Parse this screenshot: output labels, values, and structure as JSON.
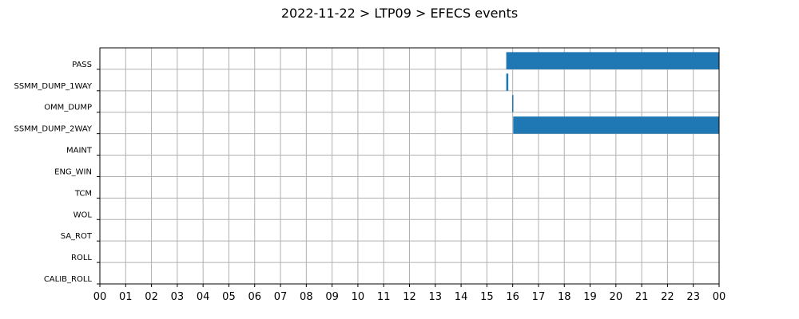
{
  "chart_data": {
    "type": "bar",
    "orientation": "horizontal",
    "title": "2022-11-22 > LTP09 > EFECS events",
    "xlabel": "",
    "ylabel": "",
    "x_unit": "hour of day",
    "xlim": [
      0,
      24
    ],
    "x_tick_labels": [
      "00",
      "01",
      "02",
      "03",
      "04",
      "05",
      "06",
      "07",
      "08",
      "09",
      "10",
      "11",
      "12",
      "13",
      "14",
      "15",
      "16",
      "17",
      "18",
      "19",
      "20",
      "21",
      "22",
      "23",
      "00"
    ],
    "categories": [
      "PASS",
      "SSMM_DUMP_1WAY",
      "OMM_DUMP",
      "SSMM_DUMP_2WAY",
      "MAINT",
      "ENG_WIN",
      "TCM",
      "WOL",
      "SA_ROT",
      "ROLL",
      "CALIB_ROLL"
    ],
    "events": [
      {
        "category": "PASS",
        "start": 15.75,
        "end": 24.0
      },
      {
        "category": "SSMM_DUMP_1WAY",
        "start": 15.75,
        "end": 15.83
      },
      {
        "category": "OMM_DUMP",
        "start": 15.98,
        "end": 16.02
      },
      {
        "category": "SSMM_DUMP_2WAY",
        "start": 16.02,
        "end": 24.0
      }
    ],
    "grid": true,
    "bar_color": "#1f77b4"
  }
}
